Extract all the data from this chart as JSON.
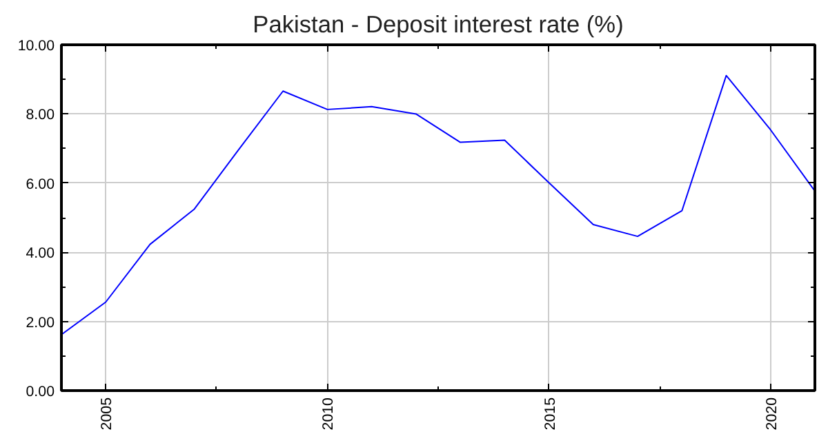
{
  "chart_data": {
    "type": "line",
    "title": "Pakistan - Deposit interest rate (%)",
    "x": [
      2004,
      2005,
      2006,
      2007,
      2008,
      2009,
      2010,
      2011,
      2012,
      2013,
      2014,
      2015,
      2016,
      2017,
      2018,
      2019,
      2020,
      2021
    ],
    "series": [
      {
        "color": "#0000ff",
        "values": [
          1.62,
          2.56,
          4.23,
          5.25,
          6.97,
          8.66,
          8.13,
          8.21,
          8.0,
          7.18,
          7.24,
          6.01,
          4.8,
          4.46,
          5.2,
          9.11,
          7.54,
          5.77
        ]
      }
    ],
    "xlim": [
      2004,
      2021
    ],
    "xticks": [
      2005,
      2010,
      2015,
      2020
    ],
    "ylim": [
      0,
      10
    ],
    "yticks": [
      {
        "value": 0,
        "label": "0.00"
      },
      {
        "value": 2,
        "label": "2.00"
      },
      {
        "value": 4,
        "label": "4.00"
      },
      {
        "value": 6,
        "label": "6.00"
      },
      {
        "value": 8,
        "label": "8.00"
      },
      {
        "value": 10,
        "label": "10.00"
      }
    ],
    "grid": true,
    "marker": "none",
    "line_style": "solid"
  }
}
